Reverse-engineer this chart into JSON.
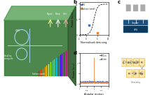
{
  "panels": {
    "b": {
      "xlabel": "Normalised detuning",
      "ylabel": "Power (a.u.)",
      "xlim": [
        -3,
        10
      ],
      "ylim": [
        0,
        10
      ],
      "legend_opo": "OPO",
      "legend_soliton": "Soliton (comb)",
      "opo_color": "#4472C4",
      "soliton_color": "#ED7D31"
    },
    "d": {
      "xlabel": "Angular motion",
      "ylabel": "Power (a.u.)",
      "xlim": [
        -1,
        1
      ],
      "ylim": [
        -0.1,
        1.5
      ],
      "legend_opo": "OPO-in",
      "legend_soliton": "Soliton",
      "opo_color": "#4472C4",
      "soliton_color": "#ED7D31"
    }
  },
  "bg_color": "#ffffff",
  "chip_bg": "#2d6e9e"
}
